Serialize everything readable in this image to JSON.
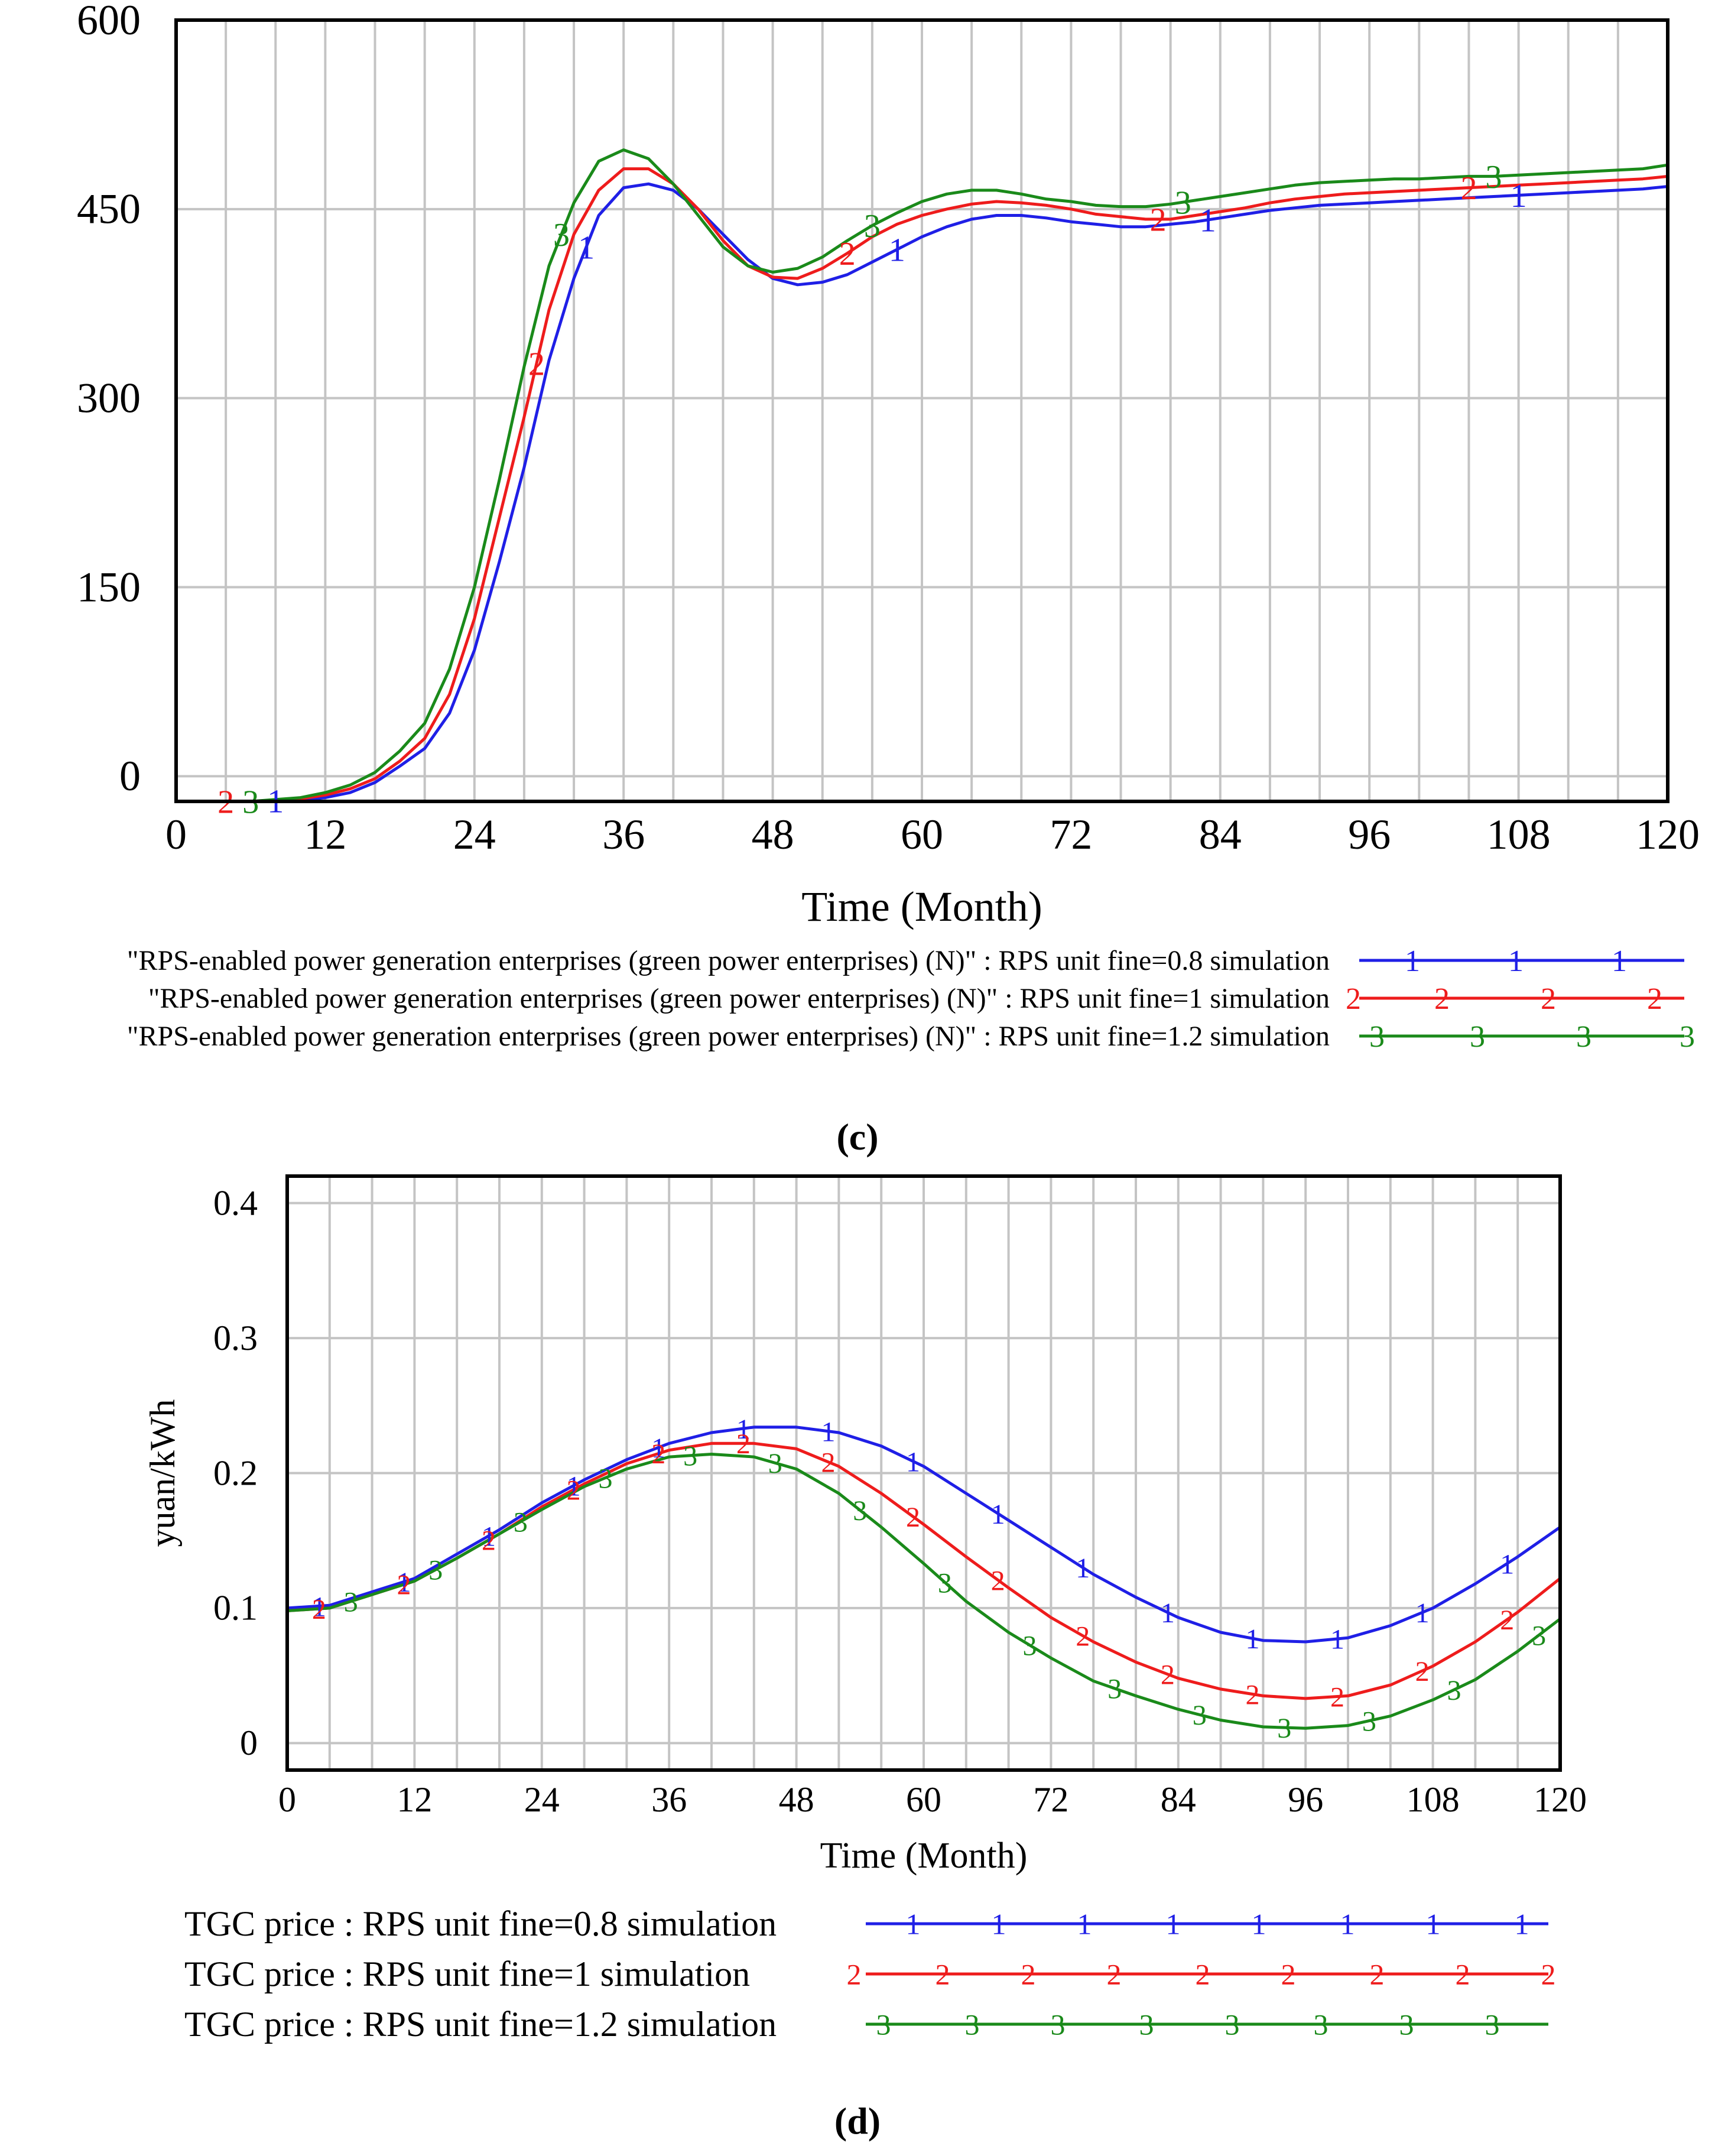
{
  "figure": {
    "panel_labels": [
      "(c)",
      "(d)"
    ]
  },
  "colors": {
    "series1": "#1f1fe6",
    "series2": "#ee1c1c",
    "series3": "#1a8a1a",
    "grid": "#c4c4c4",
    "axis": "#000000"
  },
  "chart_data": [
    {
      "panel": "(c)",
      "type": "line",
      "title": "",
      "xlabel": "Time (Month)",
      "ylabel": "",
      "xlim": [
        0,
        120
      ],
      "ylim": [
        -20,
        600
      ],
      "x_ticks": [
        0,
        12,
        24,
        36,
        48,
        60,
        72,
        84,
        96,
        108,
        120
      ],
      "y_ticks": [
        0,
        150,
        300,
        450,
        600
      ],
      "grid": true,
      "legend_position": "below",
      "x": [
        0,
        6,
        10,
        12,
        14,
        16,
        18,
        20,
        22,
        24,
        26,
        28,
        30,
        32,
        34,
        36,
        38,
        40,
        42,
        44,
        46,
        48,
        50,
        52,
        54,
        56,
        58,
        60,
        62,
        64,
        66,
        68,
        70,
        72,
        74,
        76,
        78,
        80,
        82,
        84,
        86,
        88,
        90,
        92,
        94,
        96,
        98,
        100,
        102,
        104,
        106,
        108,
        110,
        112,
        114,
        116,
        118,
        120
      ],
      "series": [
        {
          "name": "\"RPS-enabled power generation enterprises (green power enterprises) (N)\" : RPS unit fine=0.8 simulation",
          "marker": "1",
          "values": [
            -20,
            -20,
            -19,
            -17,
            -13,
            -5,
            8,
            22,
            50,
            100,
            170,
            245,
            330,
            395,
            445,
            467,
            470,
            465,
            450,
            430,
            410,
            395,
            390,
            392,
            398,
            408,
            418,
            428,
            436,
            442,
            445,
            445,
            443,
            440,
            438,
            436,
            436,
            438,
            440,
            443,
            446,
            449,
            451,
            453,
            454,
            455,
            456,
            457,
            458,
            459,
            460,
            461,
            462,
            463,
            464,
            465,
            466,
            468
          ]
        },
        {
          "name": "\"RPS-enabled power generation enterprises (green power enterprises) (N)\" : RPS unit fine=1 simulation",
          "marker": "2",
          "values": [
            -20,
            -20,
            -18,
            -15,
            -10,
            -2,
            12,
            30,
            65,
            125,
            205,
            285,
            370,
            430,
            465,
            482,
            482,
            470,
            450,
            425,
            405,
            396,
            395,
            403,
            415,
            428,
            438,
            445,
            450,
            454,
            456,
            455,
            453,
            450,
            446,
            444,
            442,
            442,
            445,
            448,
            451,
            455,
            458,
            460,
            462,
            463,
            464,
            465,
            466,
            467,
            468,
            469,
            470,
            471,
            472,
            473,
            474,
            476
          ]
        },
        {
          "name": "\"RPS-enabled power generation enterprises (green power enterprises) (N)\" : RPS unit fine=1.2 simulation",
          "marker": "3",
          "values": [
            -20,
            -20,
            -17,
            -13,
            -7,
            3,
            20,
            42,
            85,
            150,
            235,
            325,
            405,
            455,
            488,
            497,
            490,
            470,
            445,
            420,
            405,
            400,
            403,
            412,
            425,
            437,
            447,
            456,
            462,
            465,
            465,
            462,
            458,
            456,
            453,
            452,
            452,
            454,
            457,
            460,
            463,
            466,
            469,
            471,
            472,
            473,
            474,
            474,
            475,
            476,
            476,
            477,
            478,
            479,
            480,
            481,
            482,
            485
          ]
        }
      ]
    },
    {
      "panel": "(d)",
      "type": "line",
      "title": "",
      "xlabel": "Time (Month)",
      "ylabel": "yuan/kWh",
      "xlim": [
        0,
        120
      ],
      "ylim": [
        -0.02,
        0.42
      ],
      "x_ticks": [
        0,
        12,
        24,
        36,
        48,
        60,
        72,
        84,
        96,
        108,
        120
      ],
      "y_ticks": [
        0,
        0.1,
        0.2,
        0.3,
        0.4
      ],
      "y_tick_labels": [
        "0",
        "0.1",
        "0.2",
        "0.3",
        "0.4"
      ],
      "grid": true,
      "legend_position": "below",
      "x": [
        0,
        4,
        8,
        12,
        16,
        20,
        24,
        28,
        32,
        36,
        40,
        44,
        48,
        52,
        56,
        60,
        64,
        68,
        72,
        76,
        80,
        84,
        88,
        92,
        96,
        100,
        104,
        108,
        112,
        116,
        120
      ],
      "series": [
        {
          "name": "TGC price : RPS unit fine=0.8 simulation",
          "marker": "1",
          "values": [
            0.1,
            0.102,
            0.112,
            0.122,
            0.14,
            0.158,
            0.178,
            0.195,
            0.21,
            0.222,
            0.23,
            0.234,
            0.234,
            0.23,
            0.22,
            0.205,
            0.185,
            0.165,
            0.145,
            0.125,
            0.108,
            0.093,
            0.082,
            0.076,
            0.075,
            0.078,
            0.087,
            0.1,
            0.118,
            0.138,
            0.16
          ]
        },
        {
          "name": "TGC price : RPS unit fine=1 simulation",
          "marker": "2",
          "values": [
            0.098,
            0.1,
            0.11,
            0.12,
            0.137,
            0.155,
            0.175,
            0.192,
            0.207,
            0.217,
            0.222,
            0.222,
            0.218,
            0.205,
            0.185,
            0.162,
            0.138,
            0.115,
            0.093,
            0.075,
            0.06,
            0.048,
            0.04,
            0.035,
            0.033,
            0.035,
            0.043,
            0.057,
            0.075,
            0.097,
            0.122
          ]
        },
        {
          "name": "TGC price : RPS unit fine=1.2 simulation",
          "marker": "3",
          "values": [
            0.098,
            0.1,
            0.11,
            0.12,
            0.137,
            0.155,
            0.173,
            0.19,
            0.203,
            0.212,
            0.214,
            0.212,
            0.203,
            0.185,
            0.16,
            0.133,
            0.105,
            0.082,
            0.063,
            0.046,
            0.035,
            0.025,
            0.017,
            0.012,
            0.011,
            0.013,
            0.02,
            0.032,
            0.047,
            0.068,
            0.092
          ]
        }
      ]
    }
  ]
}
